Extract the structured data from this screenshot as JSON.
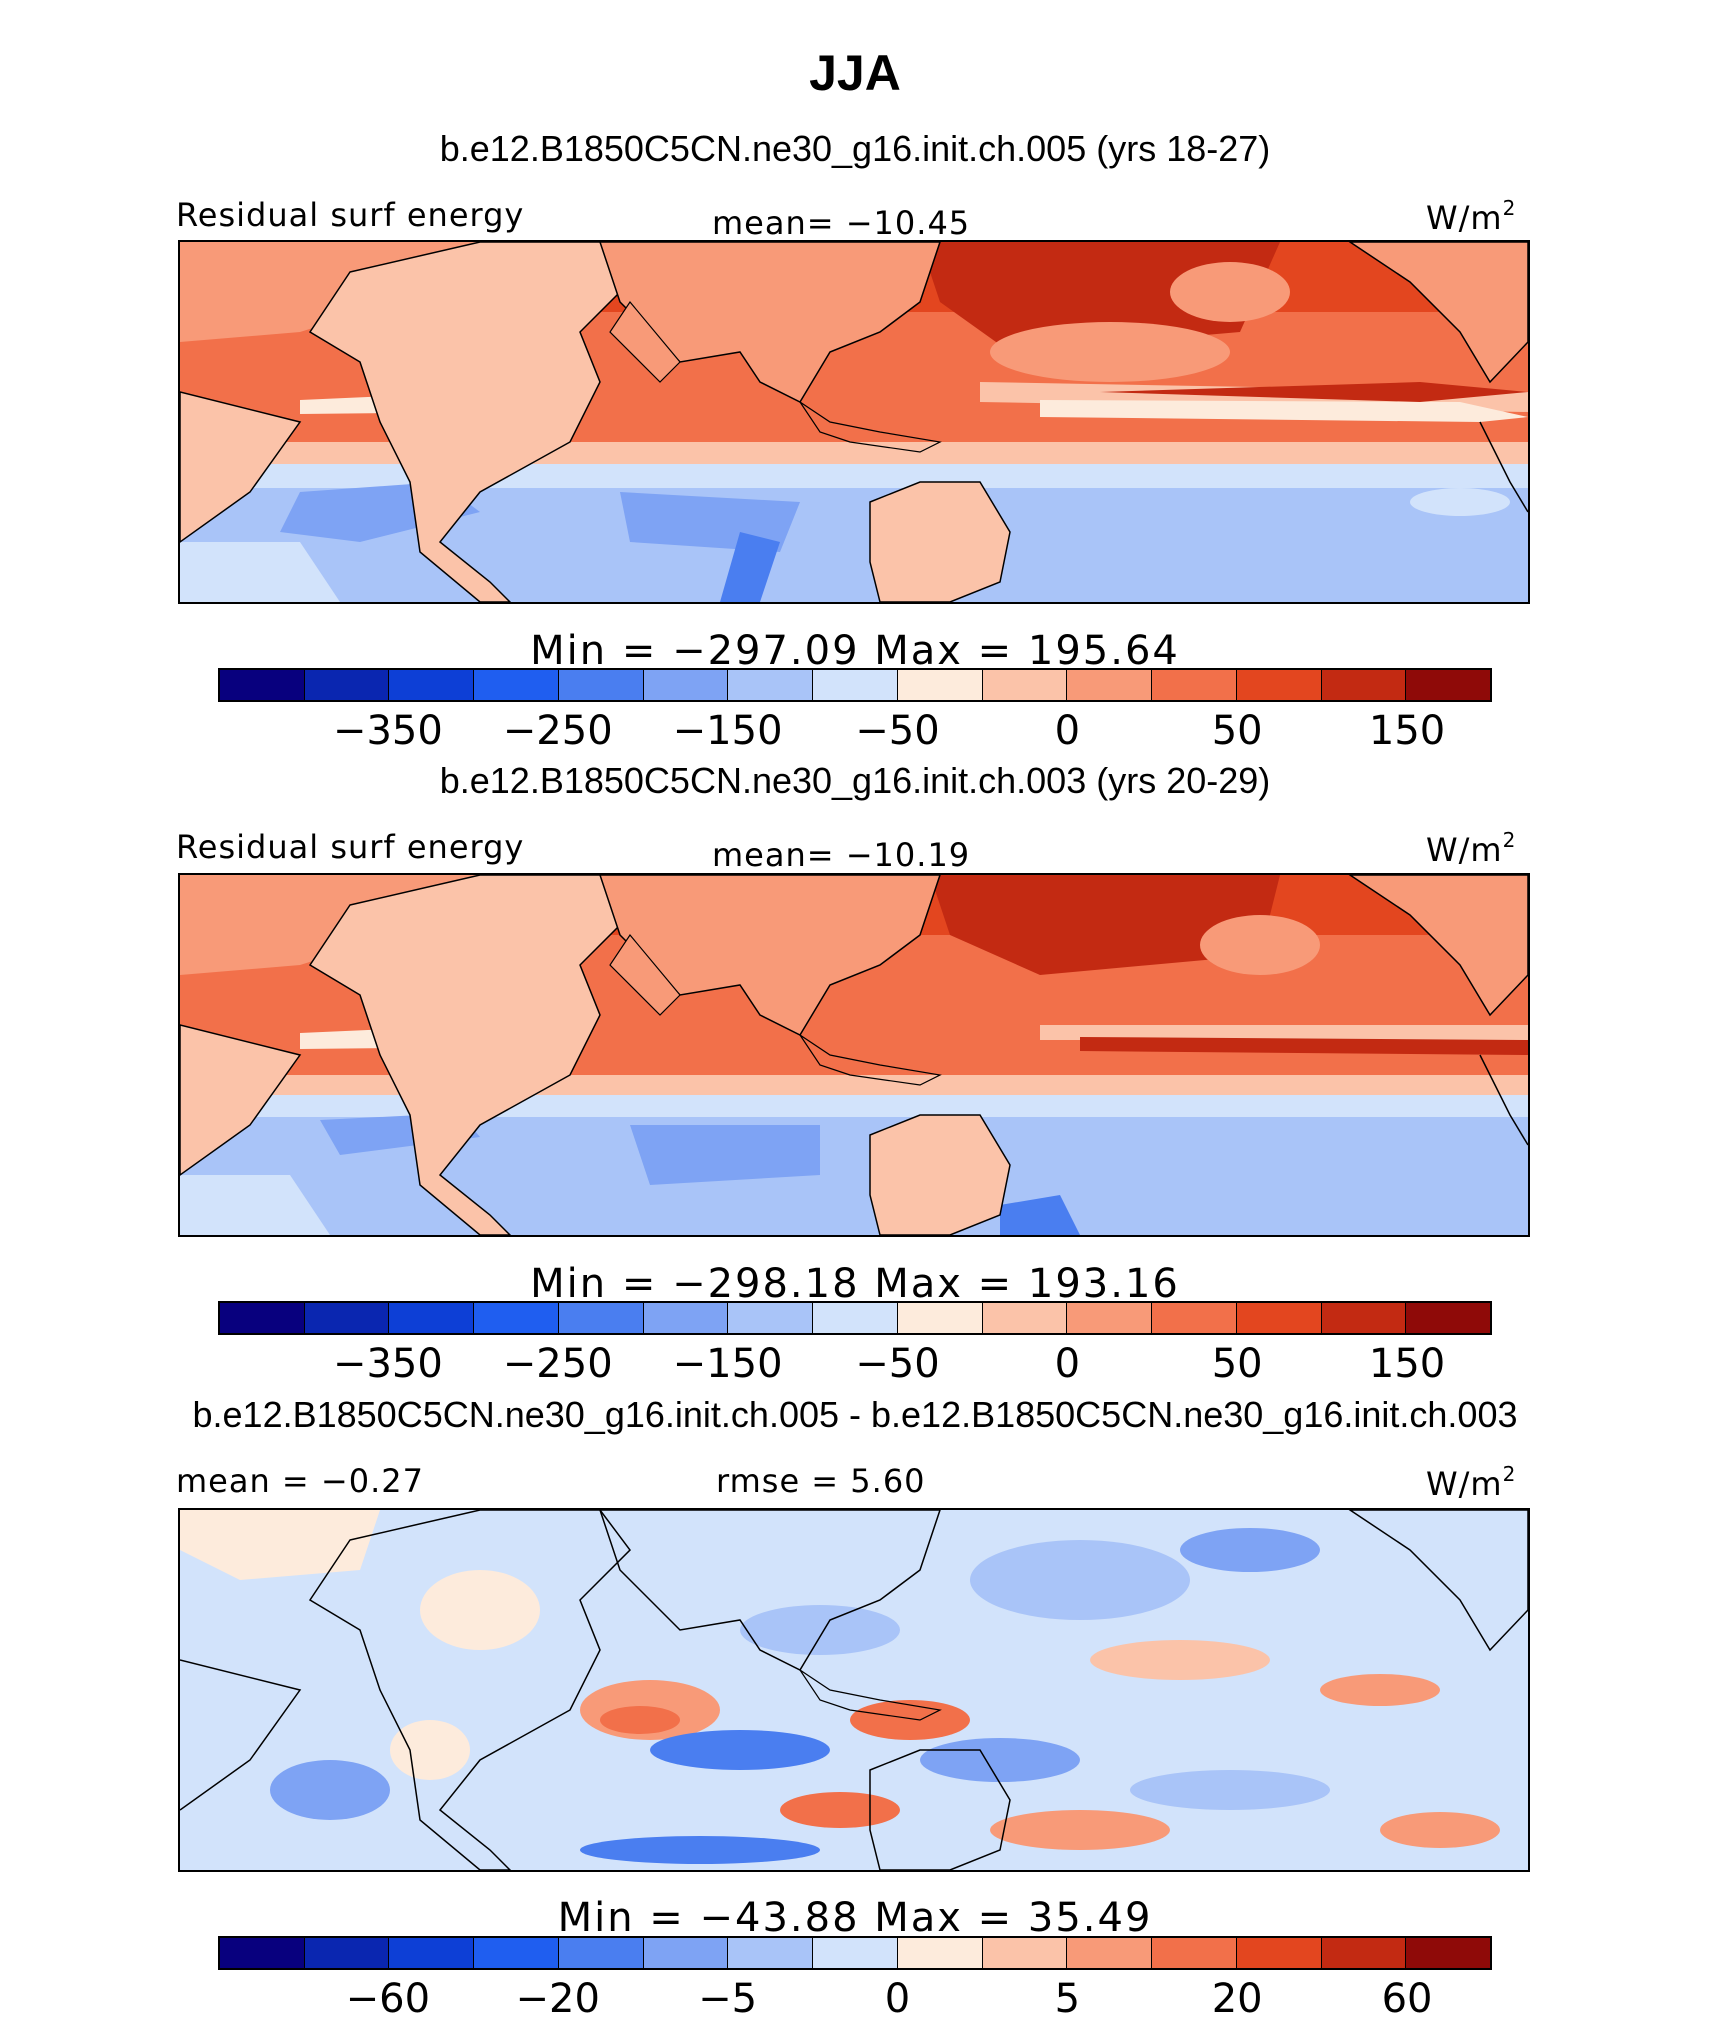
{
  "title": "JJA",
  "panels": [
    {
      "case_title": "b.e12.B1850C5CN.ne30_g16.init.ch.005 (yrs 18-27)",
      "left_label": "Residual surf energy",
      "center_label": "mean=  −10.45",
      "units": "W/m",
      "units_sup": "2",
      "minmax": "Min  =  −297.09  Max  =  195.64",
      "tick_labels": [
        "−350",
        "−250",
        "−150",
        "−50",
        "0",
        "50",
        "150"
      ]
    },
    {
      "case_title": "b.e12.B1850C5CN.ne30_g16.init.ch.003 (yrs 20-29)",
      "left_label": "Residual surf energy",
      "center_label": "mean=  −10.19",
      "units": "W/m",
      "units_sup": "2",
      "minmax": "Min  =  −298.18  Max  =  193.16",
      "tick_labels": [
        "−350",
        "−250",
        "−150",
        "−50",
        "0",
        "50",
        "150"
      ]
    },
    {
      "case_title": "b.e12.B1850C5CN.ne30_g16.init.ch.005 - b.e12.B1850C5CN.ne30_g16.init.ch.003",
      "left_label": "mean  =    −0.27",
      "center_label": "rmse  =      5.60",
      "units": "W/m",
      "units_sup": "2",
      "minmax": "Min  =  −43.88  Max  =    35.49",
      "tick_labels": [
        "−60",
        "−20",
        "−5",
        "0",
        "5",
        "20",
        "60"
      ]
    }
  ],
  "colorbar_colors": [
    "#08007e",
    "#0a26b0",
    "#0d3fd6",
    "#1f5ef0",
    "#4a7ef0",
    "#7ea3f4",
    "#a9c4f8",
    "#d2e3fb",
    "#fdebdc",
    "#fbc3a9",
    "#f89a78",
    "#f2704a",
    "#e3461f",
    "#c32a12",
    "#8f0a08"
  ]
}
